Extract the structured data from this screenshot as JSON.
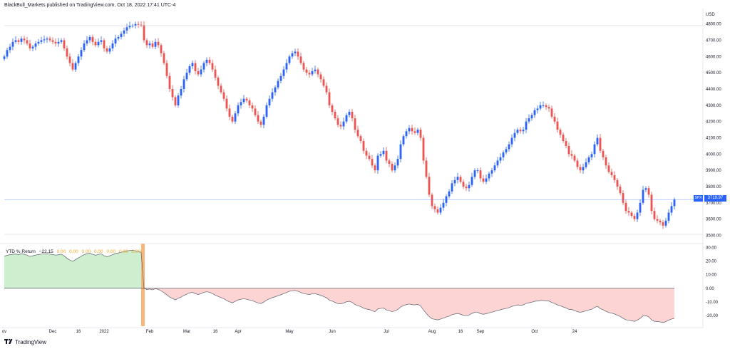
{
  "header": {
    "publisher": "BlackBull_Markets published on TradingView.com, Oct 18, 2022 17:41 UTC-4"
  },
  "footer": {
    "brand": "TradingView"
  },
  "price_scale": {
    "currency": "USD"
  },
  "symbol": {
    "ticker": "SPX",
    "last_price": "3719.97"
  },
  "indicator": {
    "name": "YTD % Return",
    "value": "−22.15",
    "zeros": [
      "0.00",
      "0.00",
      "0.00",
      "0.00",
      "0.00",
      "0.00",
      "0.00"
    ]
  },
  "colors": {
    "up": "#2962ff",
    "down": "#ef5350",
    "positive_fill": "#cdeecf",
    "negative_fill": "#fdd4d4",
    "highlight": "#f7b77a"
  },
  "chart_data": [
    {
      "type": "candlestick",
      "title": "SPX",
      "x_tick_labels": [
        "ov",
        "Dec",
        "16",
        "2022",
        "Feb",
        "Mar",
        "16",
        "Apr",
        "May",
        "Jun",
        "Jul",
        "Aug",
        "16",
        "Sep",
        "Oct",
        "24"
      ],
      "y_tick_labels": [
        "3500.00",
        "3600.00",
        "3700.00",
        "3800.00",
        "3900.00",
        "4000.00",
        "4100.00",
        "4200.00",
        "4300.00",
        "4400.00",
        "4500.00",
        "4600.00",
        "4700.00",
        "4800.00"
      ],
      "ylim": [
        3480,
        4860
      ],
      "grid": false,
      "last_price": 3719.97,
      "approx_closes": [
        4600,
        4640,
        4660,
        4690,
        4700,
        4690,
        4710,
        4700,
        4680,
        4650,
        4660,
        4680,
        4690,
        4700,
        4705,
        4710,
        4700,
        4690,
        4680,
        4690,
        4700,
        4650,
        4600,
        4560,
        4520,
        4560,
        4600,
        4640,
        4680,
        4700,
        4720,
        4690,
        4670,
        4690,
        4700,
        4650,
        4630,
        4650,
        4680,
        4710,
        4720,
        4740,
        4760,
        4780,
        4790,
        4790,
        4800,
        4796,
        4793,
        4700,
        4670,
        4680,
        4660,
        4690,
        4670,
        4620,
        4560,
        4480,
        4400,
        4350,
        4300,
        4360,
        4400,
        4460,
        4500,
        4540,
        4560,
        4510,
        4490,
        4520,
        4560,
        4580,
        4560,
        4520,
        4470,
        4420,
        4380,
        4340,
        4280,
        4230,
        4200,
        4250,
        4300,
        4320,
        4340,
        4330,
        4300,
        4280,
        4240,
        4200,
        4180,
        4230,
        4300,
        4340,
        4380,
        4410,
        4450,
        4480,
        4520,
        4560,
        4600,
        4620,
        4630,
        4600,
        4560,
        4520,
        4500,
        4490,
        4510,
        4520,
        4490,
        4460,
        4420,
        4380,
        4300,
        4260,
        4220,
        4180,
        4170,
        4200,
        4240,
        4260,
        4220,
        4150,
        4110,
        4080,
        4020,
        3990,
        3970,
        3930,
        3900,
        3990,
        4000,
        4020,
        3960,
        3940,
        3900,
        3930,
        3970,
        4060,
        4110,
        4140,
        4160,
        4140,
        4130,
        4150,
        4100,
        3960,
        3860,
        3750,
        3680,
        3660,
        3640,
        3670,
        3700,
        3740,
        3770,
        3820,
        3840,
        3860,
        3830,
        3800,
        3790,
        3810,
        3860,
        3900,
        3900,
        3850,
        3830,
        3850,
        3880,
        3900,
        3930,
        3960,
        3980,
        4010,
        4030,
        4060,
        4100,
        4130,
        4150,
        4140,
        4150,
        4200,
        4220,
        4240,
        4270,
        4280,
        4300,
        4300,
        4290,
        4280,
        4230,
        4200,
        4150,
        4120,
        4080,
        4050,
        4000,
        3990,
        3960,
        3920,
        3900,
        3920,
        3950,
        3980,
        4000,
        4060,
        4100,
        4020,
        3980,
        3930,
        3890,
        3870,
        3840,
        3800,
        3760,
        3700,
        3650,
        3640,
        3620,
        3600,
        3640,
        3700,
        3780,
        3790,
        3750,
        3650,
        3600,
        3590,
        3580,
        3560,
        3590,
        3640,
        3680,
        3720
      ]
    },
    {
      "type": "area",
      "title": "YTD % Return",
      "y_tick_labels": [
        "30.00",
        "20.00",
        "10.00",
        "0.00",
        "-10.00",
        "-20.00"
      ],
      "ylim": [
        -28,
        33
      ],
      "current_value": -22.15,
      "approx_values": [
        23.7,
        24.3,
        24.8,
        25.1,
        25.3,
        24.8,
        25.5,
        25.1,
        24.4,
        23.5,
        24.0,
        24.5,
        24.9,
        25.2,
        25.4,
        25.6,
        25.2,
        24.9,
        24.5,
        24.8,
        25.2,
        23.9,
        22.2,
        20.9,
        19.9,
        21.2,
        22.5,
        23.6,
        24.8,
        25.5,
        26.0,
        25.1,
        24.4,
        25.0,
        25.4,
        24.0,
        23.3,
        24.0,
        24.8,
        25.7,
        26.1,
        26.6,
        27.1,
        27.6,
        27.9,
        28.0,
        27.7,
        27.2,
        26.6,
        0.0,
        -0.9,
        -0.6,
        -1.2,
        -0.3,
        -0.8,
        -1.9,
        -3.2,
        -4.9,
        -6.5,
        -7.5,
        -8.6,
        -7.3,
        -6.5,
        -5.3,
        -4.3,
        -3.4,
        -3.0,
        -4.0,
        -4.6,
        -3.9,
        -3.0,
        -2.6,
        -3.0,
        -3.9,
        -5.0,
        -6.0,
        -6.8,
        -7.7,
        -9.0,
        -10.0,
        -10.7,
        -9.6,
        -8.6,
        -8.1,
        -7.8,
        -8.1,
        -8.7,
        -9.1,
        -10.0,
        -10.8,
        -11.3,
        -10.2,
        -8.7,
        -7.8,
        -6.9,
        -6.3,
        -5.4,
        -4.8,
        -3.9,
        -3.1,
        -2.2,
        -1.8,
        -1.6,
        -2.2,
        -3.1,
        -3.9,
        -4.3,
        -4.6,
        -4.1,
        -3.9,
        -4.6,
        -5.2,
        -6.1,
        -7.0,
        -8.7,
        -9.5,
        -10.4,
        -11.3,
        -11.5,
        -10.9,
        -10.0,
        -9.6,
        -10.4,
        -12.0,
        -12.8,
        -13.5,
        -14.7,
        -15.3,
        -15.7,
        -16.6,
        -17.3,
        -15.3,
        -14.9,
        -14.5,
        -16.0,
        -16.4,
        -17.3,
        -16.6,
        -15.7,
        -13.8,
        -12.8,
        -12.1,
        -11.6,
        -12.1,
        -12.3,
        -11.9,
        -13.0,
        -16.0,
        -18.6,
        -20.9,
        -22.5,
        -22.9,
        -23.4,
        -22.7,
        -22.0,
        -21.2,
        -20.6,
        -19.5,
        -19.0,
        -18.6,
        -19.2,
        -19.9,
        -20.2,
        -19.7,
        -18.6,
        -17.7,
        -17.7,
        -18.8,
        -19.2,
        -18.8,
        -18.1,
        -17.7,
        -17.0,
        -16.4,
        -15.9,
        -15.3,
        -14.9,
        -14.3,
        -13.4,
        -12.8,
        -12.3,
        -12.5,
        -12.3,
        -11.2,
        -10.7,
        -10.3,
        -9.6,
        -9.4,
        -9.0,
        -9.0,
        -9.2,
        -9.4,
        -10.5,
        -11.2,
        -12.3,
        -12.9,
        -13.8,
        -14.5,
        -15.5,
        -15.7,
        -16.4,
        -17.3,
        -17.7,
        -17.3,
        -16.6,
        -16.0,
        -15.5,
        -14.2,
        -13.3,
        -15.0,
        -15.9,
        -17.0,
        -17.9,
        -18.3,
        -19.0,
        -19.9,
        -20.8,
        -22.2,
        -23.3,
        -23.5,
        -24.0,
        -24.4,
        -23.5,
        -22.2,
        -20.4,
        -20.2,
        -21.1,
        -23.3,
        -24.4,
        -24.6,
        -24.8,
        -25.3,
        -24.6,
        -23.5,
        -22.7,
        -22.15
      ]
    }
  ]
}
